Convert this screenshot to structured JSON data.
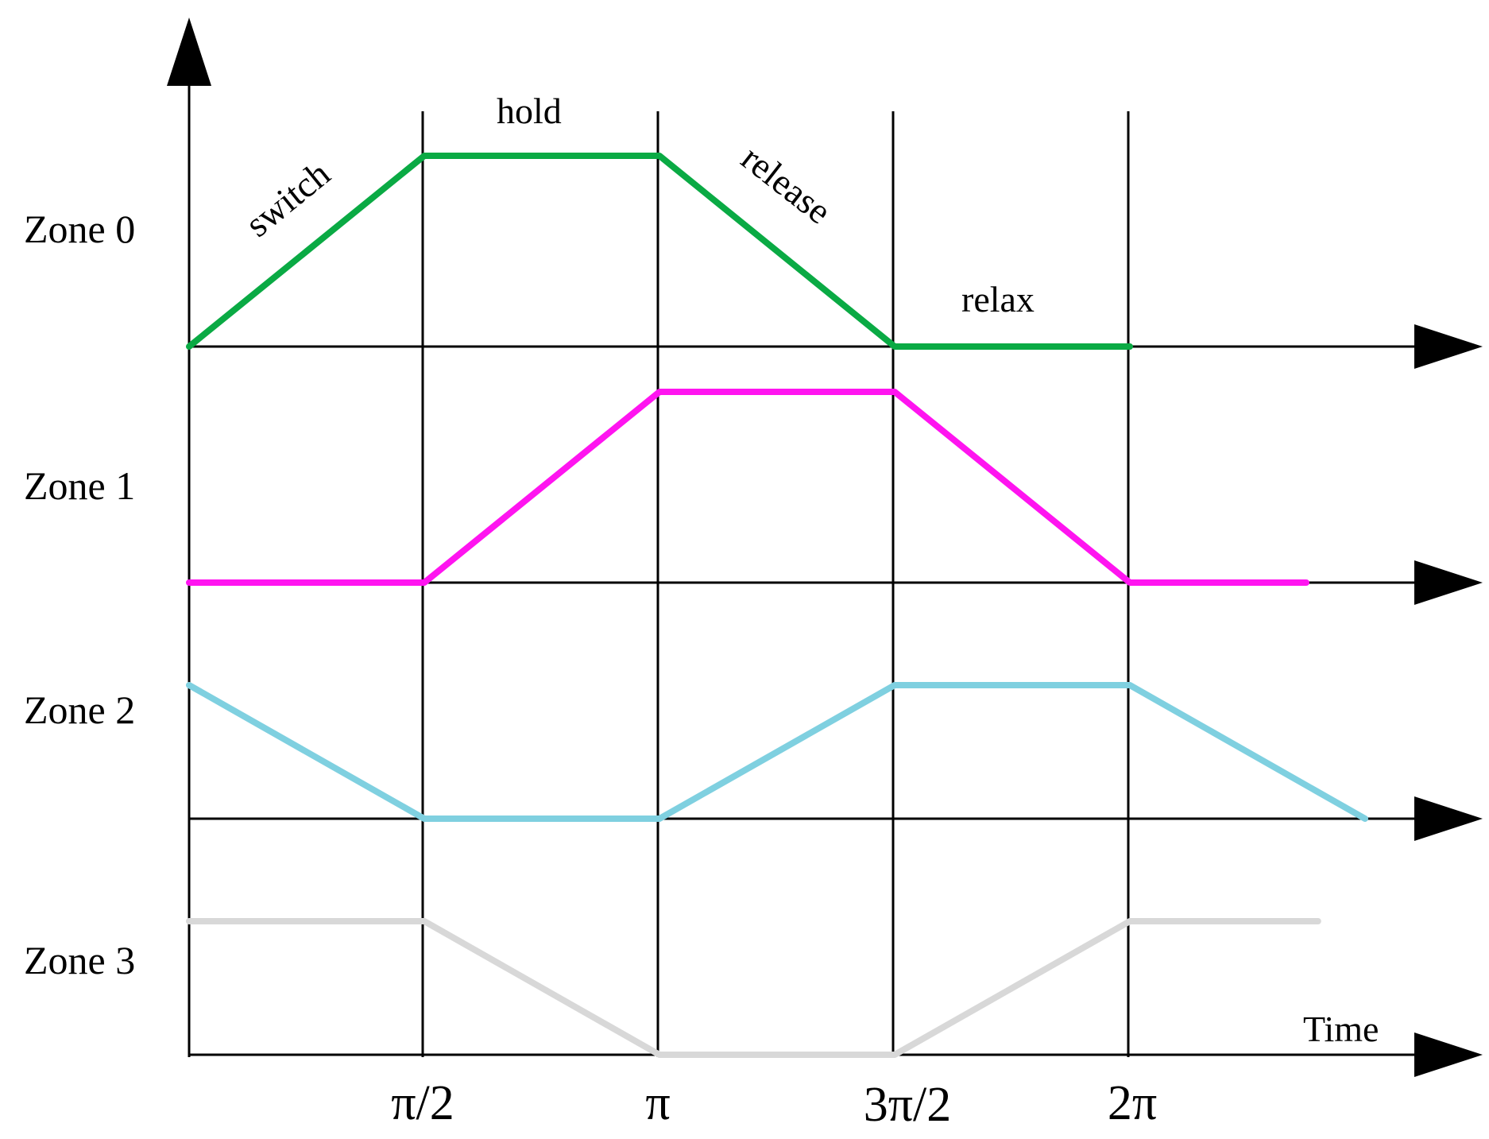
{
  "zones": [
    {
      "label": "Zone 0",
      "color": "#0aaa44",
      "levels": [
        [
          0,
          0
        ],
        [
          1,
          1
        ],
        [
          2,
          1
        ],
        [
          3,
          0
        ],
        [
          4,
          0
        ]
      ]
    },
    {
      "label": "Zone 1",
      "color": "#ff14f0",
      "levels": [
        [
          0,
          0
        ],
        [
          1,
          0
        ],
        [
          2,
          1
        ],
        [
          3,
          1
        ],
        [
          4,
          0
        ],
        [
          4.75,
          0
        ]
      ]
    },
    {
      "label": "Zone 2",
      "color": "#7fd0e0",
      "levels": [
        [
          0,
          0.7
        ],
        [
          1,
          0
        ],
        [
          2,
          0
        ],
        [
          3,
          0.7
        ],
        [
          4,
          0.7
        ],
        [
          5,
          0
        ]
      ]
    },
    {
      "label": "Zone 3",
      "color": "#d8d8d8",
      "levels": [
        [
          0,
          0.7
        ],
        [
          1,
          0.7
        ],
        [
          2,
          0
        ],
        [
          3,
          0
        ],
        [
          4,
          0.7
        ],
        [
          4.8,
          0.7
        ]
      ]
    }
  ],
  "phases": {
    "switch": "switch",
    "hold": "hold",
    "release": "release",
    "relax": "relax"
  },
  "x_ticks": [
    "π/2",
    "π",
    "3π/2",
    "2π"
  ],
  "time_label": "Time",
  "axis_color": "#000000"
}
